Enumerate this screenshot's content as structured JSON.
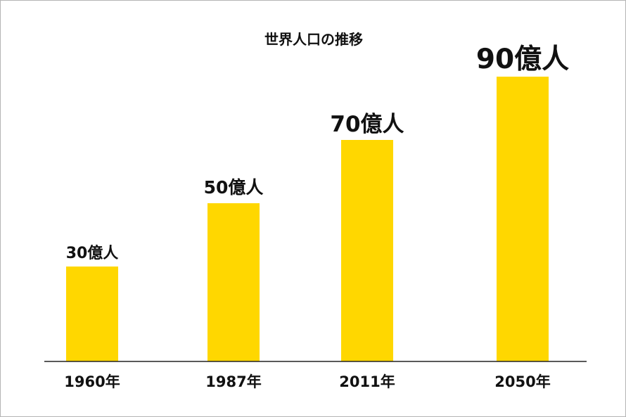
{
  "chart_data": {
    "type": "bar",
    "title": "世界人口の推移",
    "xlabel": "",
    "ylabel": "",
    "ylim": [
      0,
      100
    ],
    "grid": false,
    "legend": "none",
    "bar_color": "#FFD700",
    "categories": [
      "1960年",
      "1987年",
      "2011年",
      "2050年"
    ],
    "values": [
      30,
      50,
      70,
      90
    ],
    "data_labels": [
      "30億人",
      "50億人",
      "70億人",
      "90億人"
    ]
  }
}
